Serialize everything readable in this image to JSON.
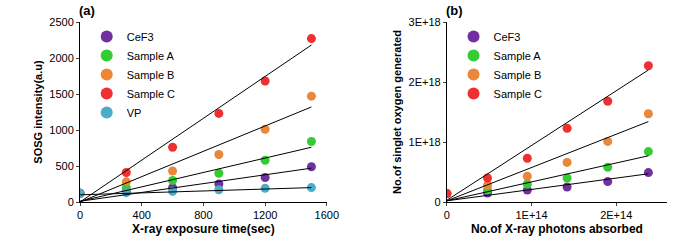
{
  "chart_data": [
    {
      "type": "scatter",
      "title": "(a)",
      "x_label": "X-ray exposure time(sec)",
      "y_label": "SOSG intensity(a.u)",
      "x": [
        0,
        300,
        600,
        900,
        1200,
        1500
      ],
      "xlim": [
        0,
        1600
      ],
      "xticks": [
        0,
        400,
        800,
        1200,
        1600
      ],
      "ylim": [
        0,
        2500
      ],
      "yticks": [
        0,
        500,
        1000,
        1500,
        2000,
        2500
      ],
      "legend": "top left",
      "grid": false,
      "marker": "circle",
      "series": [
        {
          "name": "CeF3",
          "color": "#7030a0",
          "values": [
            120,
            150,
            200,
            250,
            340,
            490
          ],
          "fit_x": [
            0,
            1500
          ],
          "fit_y": [
            10,
            470
          ]
        },
        {
          "name": "Sample A",
          "color": "#33cc33",
          "values": [
            120,
            200,
            300,
            400,
            580,
            840
          ],
          "fit_x": [
            0,
            1500
          ],
          "fit_y": [
            10,
            760
          ]
        },
        {
          "name": "Sample B",
          "color": "#e9873a",
          "values": [
            120,
            280,
            430,
            660,
            1010,
            1470
          ],
          "fit_x": [
            0,
            1500
          ],
          "fit_y": [
            0,
            1320
          ]
        },
        {
          "name": "Sample C",
          "color": "#f03030",
          "values": [
            120,
            410,
            760,
            1230,
            1680,
            2270
          ],
          "fit_x": [
            0,
            1500
          ],
          "fit_y": [
            0,
            2180
          ]
        },
        {
          "name": "VP",
          "color": "#4aacc6",
          "values": [
            120,
            130,
            150,
            170,
            190,
            200
          ],
          "fit_x": [
            0,
            1500
          ],
          "fit_y": [
            100,
            200
          ]
        }
      ]
    },
    {
      "type": "scatter",
      "title": "(b)",
      "x_label": "No.of X-ray photons absorbed",
      "y_label": "No.of singlet oxygen generated",
      "x": [
        0,
        48000000000000,
        95000000000000,
        142000000000000,
        190000000000000,
        238000000000000
      ],
      "xlim": [
        0,
        260000000000000
      ],
      "xticks": [
        0,
        {
          "value": 100000000000000,
          "label": "1E+14"
        },
        {
          "value": 200000000000000,
          "label": "2E+14"
        }
      ],
      "ylim": [
        0,
        3000000000000000000
      ],
      "yticks": [
        0,
        {
          "value": 1000000000000000000,
          "label": "1E+18"
        },
        {
          "value": 2000000000000000000,
          "label": "2E+18"
        },
        {
          "value": 3000000000000000000,
          "label": "3E+18"
        }
      ],
      "legend": "top left",
      "grid": false,
      "marker": "circle",
      "series": [
        {
          "name": "CeF3",
          "color": "#7030a0",
          "values": [
            140000000000000000,
            150000000000000000,
            200000000000000000,
            250000000000000000,
            340000000000000000,
            490000000000000000
          ],
          "fit_x": [
            0,
            238000000000000
          ],
          "fit_y": [
            20000000000000000,
            470000000000000000
          ]
        },
        {
          "name": "Sample A",
          "color": "#33cc33",
          "values": [
            140000000000000000,
            200000000000000000,
            300000000000000000,
            400000000000000000,
            580000000000000000,
            840000000000000000
          ],
          "fit_x": [
            0,
            238000000000000
          ],
          "fit_y": [
            20000000000000000,
            770000000000000000
          ]
        },
        {
          "name": "Sample B",
          "color": "#e9873a",
          "values": [
            140000000000000000,
            280000000000000000,
            430000000000000000,
            660000000000000000,
            1010000000000000000,
            1470000000000000000
          ],
          "fit_x": [
            0,
            238000000000000
          ],
          "fit_y": [
            20000000000000000,
            1340000000000000000
          ]
        },
        {
          "name": "Sample C",
          "color": "#f03030",
          "values": [
            140000000000000000,
            400000000000000000,
            730000000000000000,
            1230000000000000000,
            1680000000000000000,
            2270000000000000000
          ],
          "fit_x": [
            0,
            238000000000000
          ],
          "fit_y": [
            30000000000000000,
            2200000000000000000
          ]
        }
      ]
    }
  ]
}
